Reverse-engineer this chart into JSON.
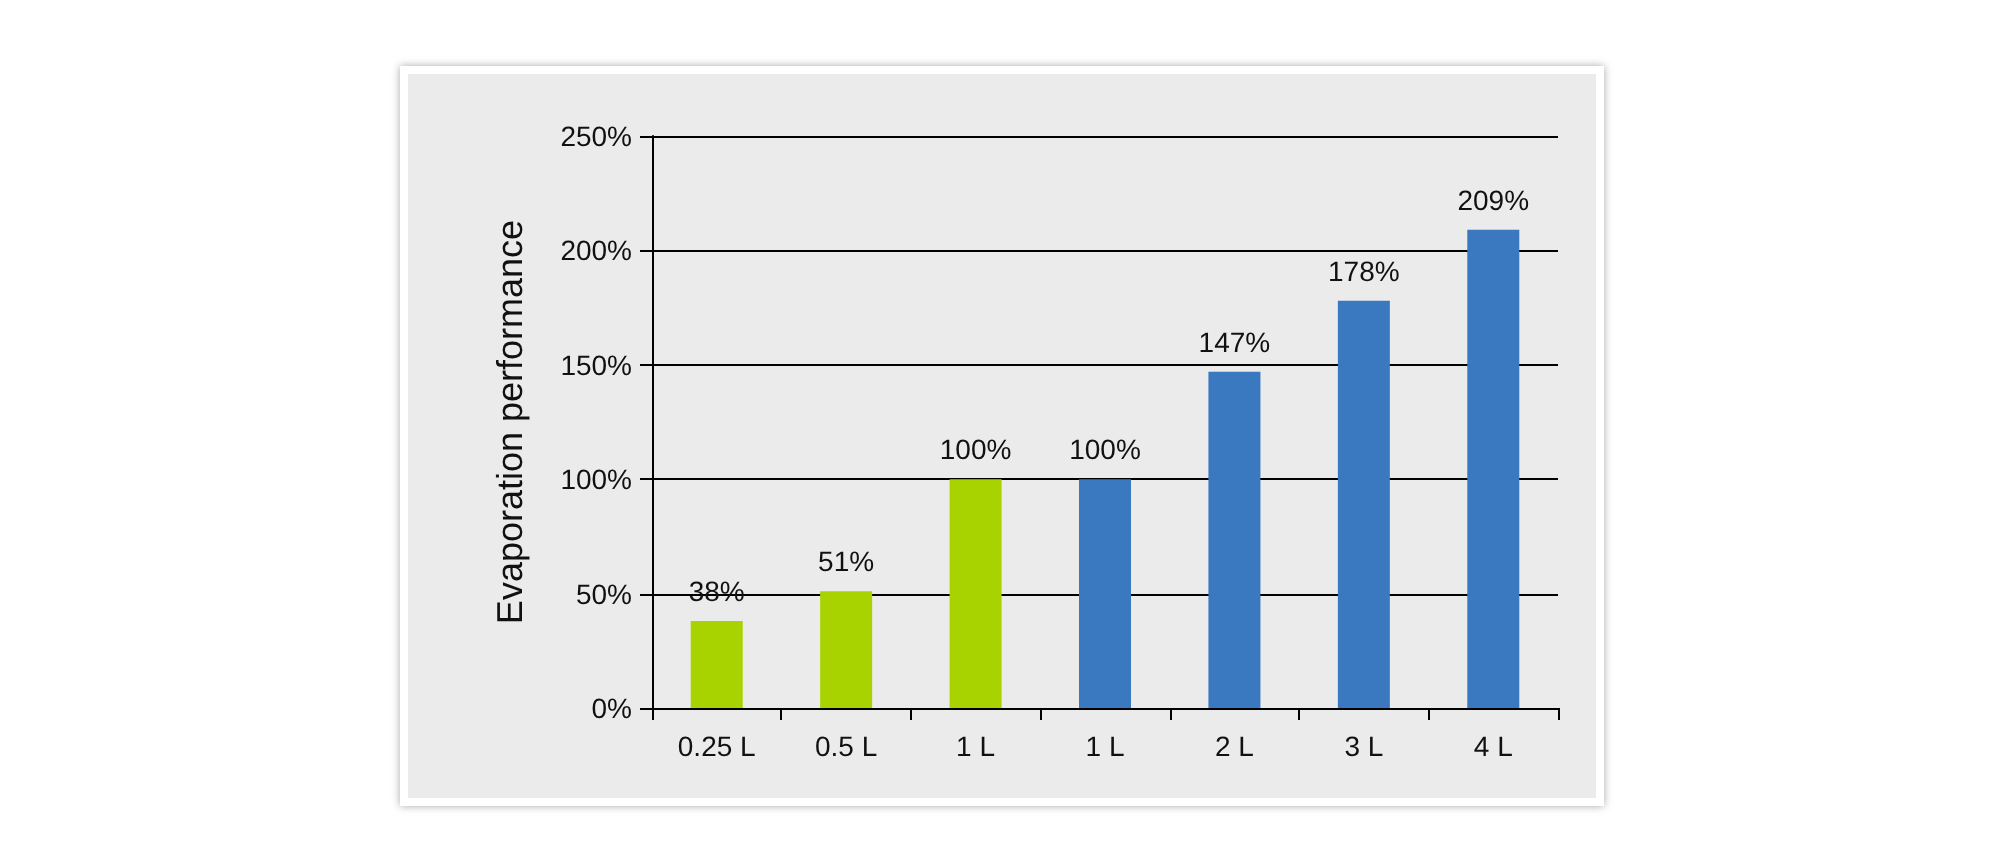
{
  "chart_data": {
    "type": "bar",
    "ylabel": "Evaporation performance",
    "categories": [
      "0.25 L",
      "0.5 L",
      "1 L",
      "1 L",
      "2 L",
      "3 L",
      "4 L"
    ],
    "values": [
      38,
      51,
      100,
      100,
      147,
      178,
      209
    ],
    "colors": [
      "#a8d200",
      "#a8d200",
      "#a8d200",
      "#3a78c0",
      "#3a78c0",
      "#3a78c0",
      "#3a78c0"
    ],
    "value_labels": [
      "38%",
      "51%",
      "100%",
      "100%",
      "147%",
      "178%",
      "209%"
    ],
    "ylim": [
      0,
      250
    ],
    "yticks": [
      {
        "value": 0,
        "label": "0%"
      },
      {
        "value": 50,
        "label": "50%"
      },
      {
        "value": 100,
        "label": "100%"
      },
      {
        "value": 150,
        "label": "150%"
      },
      {
        "value": 200,
        "label": "200%"
      },
      {
        "value": 250,
        "label": "250%"
      }
    ],
    "grid": "y"
  }
}
